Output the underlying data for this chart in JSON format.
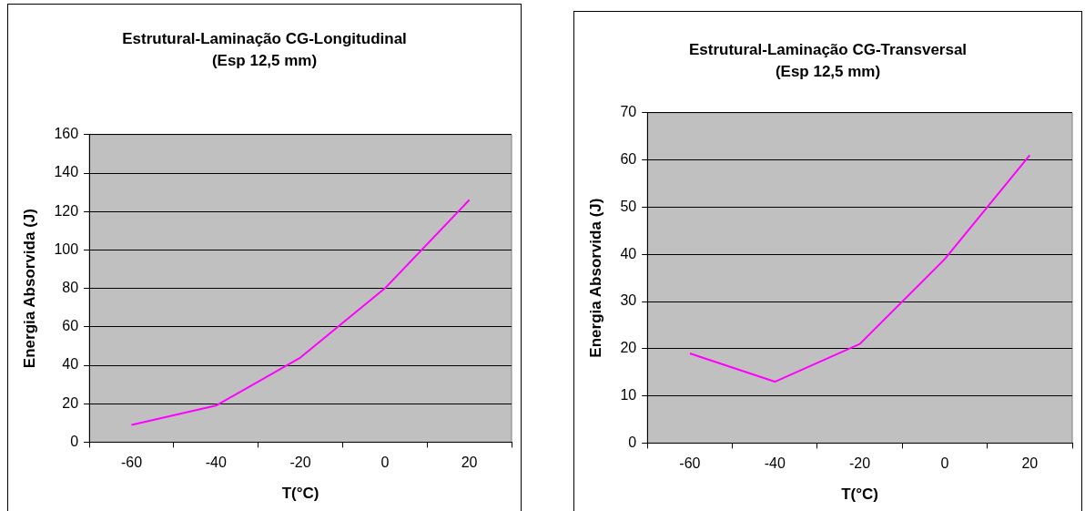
{
  "chart_data": [
    {
      "type": "line",
      "title": "Estrutural-Laminação CG-Longitudinal",
      "subtitle": "(Esp 12,5 mm)",
      "xlabel": "T(°C)",
      "ylabel": "Energia Absorvida (J)",
      "categories": [
        "-60",
        "-40",
        "-20",
        "0",
        "20"
      ],
      "series": [
        {
          "color": "#ff00ff",
          "values": [
            9,
            19,
            44,
            80,
            126
          ]
        }
      ],
      "ylim": [
        0,
        160
      ],
      "yticks": [
        0,
        20,
        40,
        60,
        80,
        100,
        120,
        140,
        160
      ],
      "grid": "y",
      "legend": false,
      "marker": "none"
    },
    {
      "type": "line",
      "title": "Estrutural-Laminação CG-Transversal",
      "subtitle": "(Esp 12,5 mm)",
      "xlabel": "T(°C)",
      "ylabel": "Energia Absorvida (J)",
      "categories": [
        "-60",
        "-40",
        "-20",
        "0",
        "20"
      ],
      "series": [
        {
          "color": "#ff00ff",
          "values": [
            19,
            13,
            21,
            39,
            61
          ]
        }
      ],
      "ylim": [
        0,
        70
      ],
      "yticks": [
        0,
        10,
        20,
        30,
        40,
        50,
        60,
        70
      ],
      "grid": "y",
      "legend": false,
      "marker": "none"
    }
  ]
}
